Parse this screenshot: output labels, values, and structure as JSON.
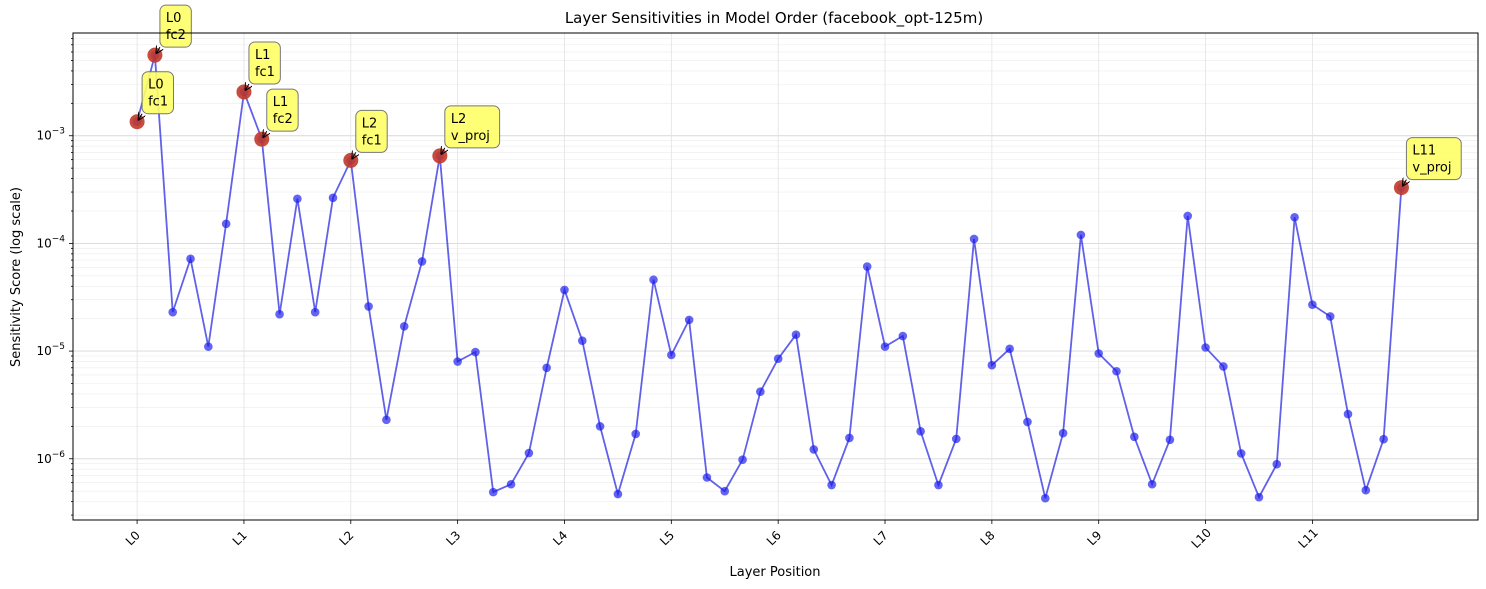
{
  "chart_data": {
    "type": "line",
    "title": "Layer Sensitivities in Model Order (facebook_opt-125m)",
    "xlabel": "Layer Position",
    "ylabel": "Sensitivity Score (log scale)",
    "yscale": "log",
    "ylim": [
      2.7e-07,
      0.009
    ],
    "xlim": [
      -0.6,
      12.55
    ],
    "x_ticks": [
      "L0",
      "L1",
      "L2",
      "L3",
      "L4",
      "L5",
      "L6",
      "L7",
      "L8",
      "L9",
      "L10",
      "L11"
    ],
    "y_ticks": [
      "10^-6",
      "10^-5",
      "10^-4",
      "10^-3"
    ],
    "grid": true,
    "colors": {
      "line": "#0000dd",
      "points": "#1a1aee",
      "highlight": "#c0392b",
      "annotation_bg": "#ffff66"
    },
    "series": [
      {
        "x": [
          0,
          0.1667,
          0.3333,
          0.5,
          0.6667,
          0.8333,
          1,
          1.1667,
          1.3333,
          1.5,
          1.6667,
          1.8333,
          2,
          2.1667,
          2.3333,
          2.5,
          2.6667,
          2.8333,
          3,
          3.1667,
          3.3333,
          3.5,
          3.6667,
          3.8333,
          4,
          4.1667,
          4.3333,
          4.5,
          4.6667,
          4.8333,
          5,
          5.1667,
          5.3333,
          5.5,
          5.6667,
          5.8333,
          6,
          6.1667,
          6.3333,
          6.5,
          6.6667,
          6.8333,
          7,
          7.1667,
          7.3333,
          7.5,
          7.6667,
          7.8333,
          8,
          8.1667,
          8.3333,
          8.5,
          8.6667,
          8.8333,
          9,
          9.1667,
          9.3333,
          9.5,
          9.6667,
          9.8333,
          10,
          10.1667,
          10.3333,
          10.5,
          10.6667,
          10.8333,
          11,
          11.1667,
          11.3333,
          11.5,
          11.6667,
          11.8333
        ],
        "y": [
          0.00135,
          0.0056,
          2.3e-05,
          7.2e-05,
          1.1e-05,
          0.000152,
          0.00255,
          0.00093,
          2.2e-05,
          0.00026,
          2.3e-05,
          0.000265,
          0.00059,
          2.6e-05,
          2.3e-06,
          1.7e-05,
          6.8e-05,
          0.00065,
          8e-06,
          9.8e-06,
          4.9e-07,
          5.8e-07,
          1.13e-06,
          7e-06,
          3.7e-05,
          1.25e-05,
          2e-06,
          4.7e-07,
          1.7e-06,
          4.6e-05,
          9.2e-06,
          1.95e-05,
          6.7e-07,
          5e-07,
          9.8e-07,
          4.2e-06,
          8.5e-06,
          1.42e-05,
          1.22e-06,
          5.7e-07,
          1.56e-06,
          6.1e-05,
          1.1e-05,
          1.38e-05,
          1.8e-06,
          5.7e-07,
          1.53e-06,
          0.00011,
          7.4e-06,
          1.05e-05,
          2.2e-06,
          4.3e-07,
          1.73e-06,
          0.00012,
          9.5e-06,
          6.5e-06,
          1.6e-06,
          5.8e-07,
          1.5e-06,
          0.00018,
          1.08e-05,
          7.2e-06,
          1.12e-06,
          4.4e-07,
          8.9e-07,
          0.000175,
          2.7e-05,
          2.1e-05,
          2.6e-06,
          5.1e-07,
          1.52e-06,
          0.00033
        ]
      }
    ],
    "annotations": [
      {
        "x": 0,
        "y": 0.00135,
        "layer": "L0",
        "name": "fc1"
      },
      {
        "x": 0.1667,
        "y": 0.0056,
        "layer": "L0",
        "name": "fc2"
      },
      {
        "x": 1,
        "y": 0.00255,
        "layer": "L1",
        "name": "fc1"
      },
      {
        "x": 1.1667,
        "y": 0.00093,
        "layer": "L1",
        "name": "fc2"
      },
      {
        "x": 2,
        "y": 0.00059,
        "layer": "L2",
        "name": "fc1"
      },
      {
        "x": 2.8333,
        "y": 0.00065,
        "layer": "L2",
        "name": "v_proj"
      },
      {
        "x": 11.8333,
        "y": 0.00033,
        "layer": "L11",
        "name": "v_proj"
      }
    ]
  }
}
